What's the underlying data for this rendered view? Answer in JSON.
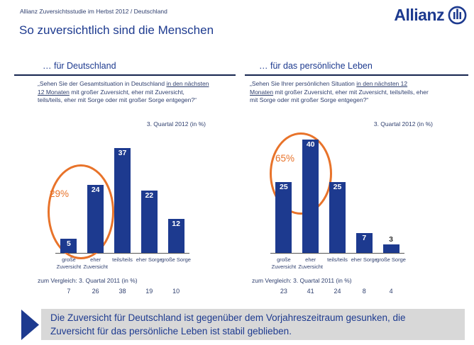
{
  "slide": {
    "breadcrumb": "Allianz Zuversichtsstudie im Herbst 2012 / Deutschland",
    "title": "So zuversichtlich sind die Menschen",
    "logo_text": "Allianz"
  },
  "colors": {
    "allianz_blue": "#1d3a8f",
    "highlight_orange": "#e8732a",
    "banner_gray": "#d8d8d8",
    "body_navy": "#30406f"
  },
  "chart_data": [
    {
      "type": "bar",
      "heading": "… für Deutschland",
      "question": {
        "pre": "„Sehen Sie der Gesamtsituation in Deutschland ",
        "underline": "in den nächsten 12 Monaten",
        "post": " mit großer Zuversicht, eher mit Zuversicht, teils/teils, eher mit Sorge oder mit großer Sorge entgegen?“"
      },
      "period": "3. Quartal 2012 (in %)",
      "categories": [
        "große Zuversicht",
        "eher Zuversicht",
        "teils/teils",
        "eher Sorge",
        "große Sorge"
      ],
      "values": [
        5,
        24,
        37,
        22,
        12
      ],
      "ylim": [
        0,
        40
      ],
      "bar_color": "#1d3a8f",
      "highlight": {
        "label": "29%",
        "covers_bars": [
          0,
          1
        ]
      },
      "comparison": {
        "label": "zum Vergleich: 3. Quartal 2011 (in %)",
        "values": [
          7,
          26,
          38,
          19,
          10
        ]
      }
    },
    {
      "type": "bar",
      "heading": "… für das persönliche Leben",
      "question": {
        "pre": "„Sehen Sie Ihrer persönlichen Situation ",
        "underline": "in den nächsten 12 Monaten",
        "post": " mit großer Zuversicht, eher mit Zuversicht, teils/teils, eher mit Sorge oder mit großer Sorge entgegen?“"
      },
      "period": "3. Quartal 2012 (in %)",
      "categories": [
        "große Zuversicht",
        "eher Zuversicht",
        "teils/teils",
        "eher Sorge",
        "große Sorge"
      ],
      "values": [
        25,
        40,
        25,
        7,
        3
      ],
      "ylim": [
        0,
        40
      ],
      "bar_color": "#1d3a8f",
      "highlight": {
        "label": "65%",
        "covers_bars": [
          0,
          1
        ]
      },
      "comparison": {
        "label": "zum Vergleich: 3. Quartal 2011 (in %)",
        "values": [
          23,
          41,
          24,
          8,
          4
        ]
      }
    }
  ],
  "banner": {
    "text": "Die Zuversicht für Deutschland ist gegenüber dem Vorjahreszeitraum gesunken, die Zuversicht für das persönliche Leben ist stabil geblieben."
  }
}
